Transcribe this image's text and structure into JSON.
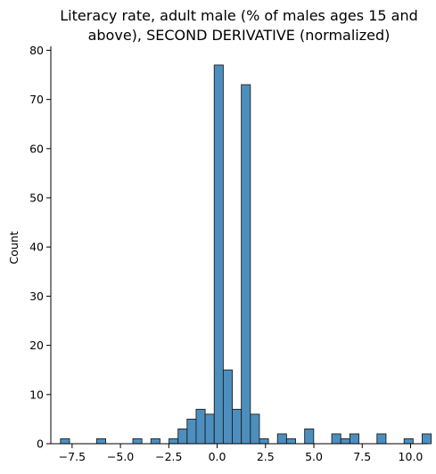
{
  "chart_data": {
    "type": "bar",
    "histogram": true,
    "title_lines": [
      "Literacy rate, adult male (% of males ages 15 and",
      "above), SECOND DERIVATIVE (normalized)"
    ],
    "xlabel": "",
    "ylabel": "Count",
    "xlim": [
      -8.6,
      10.9
    ],
    "ylim": [
      0,
      80.8
    ],
    "xticks": [
      -7.5,
      -5.0,
      -2.5,
      0.0,
      2.5,
      5.0,
      7.5,
      10.0
    ],
    "xtick_labels": [
      "−7.5",
      "−5.0",
      "−2.5",
      "0.0",
      "2.5",
      "5.0",
      "7.5",
      "10.0"
    ],
    "yticks": [
      0,
      10,
      20,
      30,
      40,
      50,
      60,
      70,
      80
    ],
    "ytick_labels": [
      "0",
      "10",
      "20",
      "30",
      "40",
      "50",
      "60",
      "70",
      "80"
    ],
    "bin_start": -8.1,
    "bin_width": 0.4675,
    "counts": [
      1,
      0,
      0,
      0,
      1,
      0,
      0,
      0,
      1,
      0,
      1,
      0,
      1,
      3,
      5,
      7,
      6,
      77,
      15,
      7,
      73,
      6,
      1,
      0,
      2,
      1,
      0,
      3,
      0,
      0,
      2,
      1,
      2,
      0,
      0,
      2,
      0,
      0,
      1,
      0,
      2
    ],
    "bar_color": "#4c8fbf",
    "edge_color": "#1f1f1f",
    "grid": false,
    "legend": "none"
  }
}
